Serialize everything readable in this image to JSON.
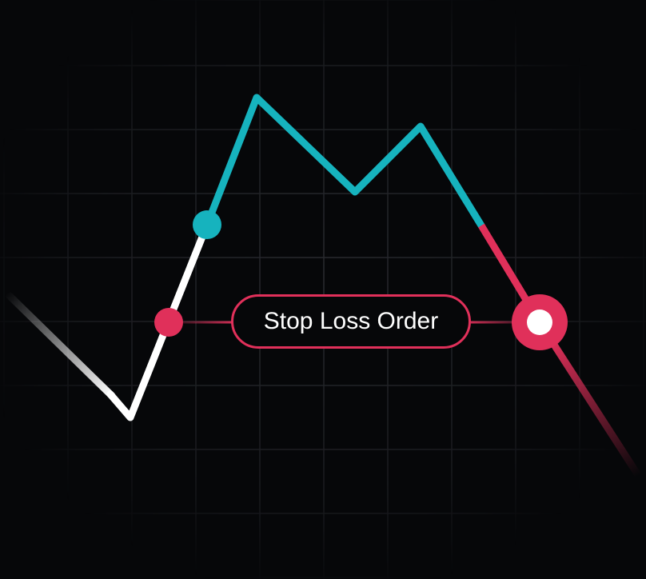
{
  "label": {
    "text": "Stop Loss Order"
  },
  "colors": {
    "background": "#060709",
    "grid": "#2a2c31",
    "price_line_before": "#ffffff",
    "price_line_active": "#16b3be",
    "stop_loss": "#e0305a"
  },
  "icons": {
    "entry_marker": "teal-dot",
    "stop_level_marker": "red-dot",
    "trigger_marker": "red-ring-with-white-center"
  }
}
